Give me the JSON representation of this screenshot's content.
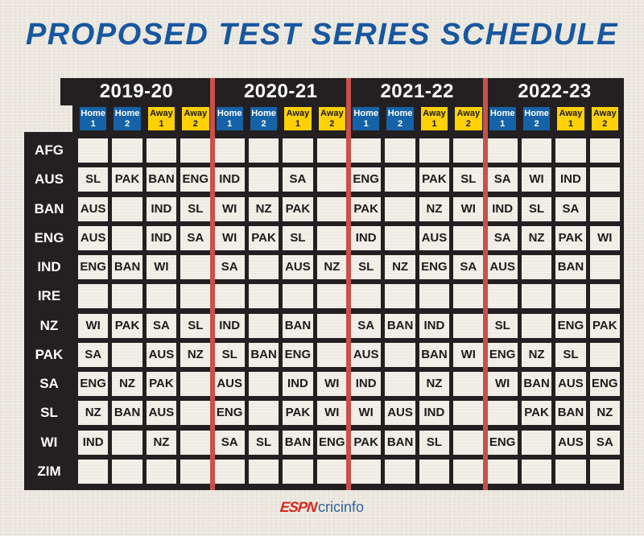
{
  "title": "PROPOSED TEST SERIES SCHEDULE",
  "chart_data": {
    "type": "table",
    "title": "PROPOSED TEST SERIES SCHEDULE",
    "seasons": [
      "2019-20",
      "2020-21",
      "2021-22",
      "2022-23"
    ],
    "col_headers": [
      {
        "line1": "Home",
        "line2": "1",
        "style": "home"
      },
      {
        "line1": "Home",
        "line2": "2",
        "style": "home"
      },
      {
        "line1": "Away",
        "line2": "1",
        "style": "away"
      },
      {
        "line1": "Away",
        "line2": "2",
        "style": "away"
      }
    ],
    "rows": [
      {
        "team": "AFG",
        "cells": [
          "",
          "",
          "",
          "",
          "",
          "",
          "",
          "",
          "",
          "",
          "",
          "",
          "",
          "",
          "",
          ""
        ]
      },
      {
        "team": "AUS",
        "cells": [
          "SL",
          "PAK",
          "BAN",
          "ENG",
          "IND",
          "",
          "SA",
          "",
          "ENG",
          "",
          "PAK",
          "SL",
          "SA",
          "WI",
          "IND",
          ""
        ]
      },
      {
        "team": "BAN",
        "cells": [
          "AUS",
          "",
          "IND",
          "SL",
          "WI",
          "NZ",
          "PAK",
          "",
          "PAK",
          "",
          "NZ",
          "WI",
          "IND",
          "SL",
          "SA",
          ""
        ]
      },
      {
        "team": "ENG",
        "cells": [
          "AUS",
          "",
          "IND",
          "SA",
          "WI",
          "PAK",
          "SL",
          "",
          "IND",
          "",
          "AUS",
          "",
          "SA",
          "NZ",
          "PAK",
          "WI"
        ]
      },
      {
        "team": "IND",
        "cells": [
          "ENG",
          "BAN",
          "WI",
          "",
          "SA",
          "",
          "AUS",
          "NZ",
          "SL",
          "NZ",
          "ENG",
          "SA",
          "AUS",
          "",
          "BAN",
          ""
        ]
      },
      {
        "team": "IRE",
        "cells": [
          "",
          "",
          "",
          "",
          "",
          "",
          "",
          "",
          "",
          "",
          "",
          "",
          "",
          "",
          "",
          ""
        ]
      },
      {
        "team": "NZ",
        "cells": [
          "WI",
          "PAK",
          "SA",
          "SL",
          "IND",
          "",
          "BAN",
          "",
          "SA",
          "BAN",
          "IND",
          "",
          "SL",
          "",
          "ENG",
          "PAK"
        ]
      },
      {
        "team": "PAK",
        "cells": [
          "SA",
          "",
          "AUS",
          "NZ",
          "SL",
          "BAN",
          "ENG",
          "",
          "AUS",
          "",
          "BAN",
          "WI",
          "ENG",
          "NZ",
          "SL",
          ""
        ]
      },
      {
        "team": "SA",
        "cells": [
          "ENG",
          "NZ",
          "PAK",
          "",
          "AUS",
          "",
          "IND",
          "WI",
          "IND",
          "",
          "NZ",
          "",
          "WI",
          "BAN",
          "AUS",
          "ENG"
        ]
      },
      {
        "team": "SL",
        "cells": [
          "NZ",
          "BAN",
          "AUS",
          "",
          "ENG",
          "",
          "PAK",
          "WI",
          "WI",
          "AUS",
          "IND",
          "",
          "",
          "PAK",
          "BAN",
          "NZ"
        ]
      },
      {
        "team": "WI",
        "cells": [
          "IND",
          "",
          "NZ",
          "",
          "SA",
          "SL",
          "BAN",
          "ENG",
          "PAK",
          "BAN",
          "SL",
          "",
          "ENG",
          "",
          "AUS",
          "SA"
        ]
      },
      {
        "team": "ZIM",
        "cells": [
          "",
          "",
          "",
          "",
          "",
          "",
          "",
          "",
          "",
          "",
          "",
          "",
          "",
          "",
          "",
          ""
        ]
      }
    ],
    "layout_hints": {
      "columns_per_season": 4,
      "season_divider_color": "#c8514b",
      "empty_cell_meaning": "no series scheduled"
    }
  },
  "footer": {
    "logo_espn": "ESPN",
    "logo_cricinfo": "cricinfo"
  },
  "colors": {
    "title_blue": "#1857a0",
    "panel_dark": "#242021",
    "home_header_blue": "#1562a8",
    "away_header_yellow": "#ffd103",
    "divider_red": "#c8514b",
    "cell_cream": "#efece4",
    "espn_red": "#d6281e",
    "cricinfo_blue": "#33619e"
  }
}
